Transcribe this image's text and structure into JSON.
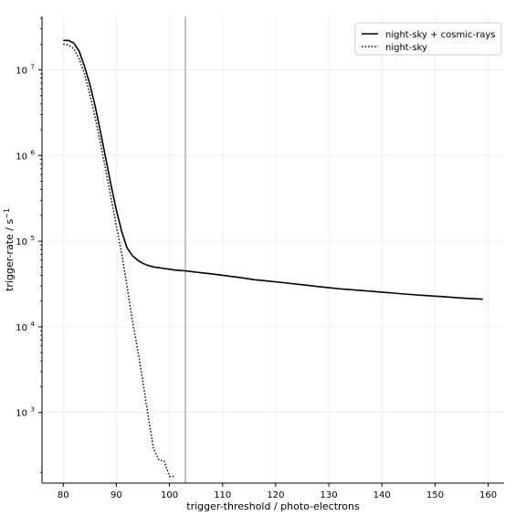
{
  "chart_data": {
    "type": "line",
    "title": "",
    "xlabel": "trigger-threshold / photo-electrons",
    "ylabel": "trigger-rate / s",
    "ylabel_superscript": "−1",
    "xlim": [
      76,
      163
    ],
    "ylim": [
      150,
      42000000
    ],
    "yscale": "log",
    "grid": true,
    "x_ticks": [
      80,
      90,
      100,
      110,
      120,
      130,
      140,
      150,
      160
    ],
    "x_tick_labels": [
      "80",
      "90",
      "100",
      "110",
      "120",
      "130",
      "140",
      "150",
      "160"
    ],
    "y_ticks": [
      1000,
      10000,
      100000,
      1000000,
      10000000
    ],
    "y_tick_labels": [
      {
        "base": "10",
        "exp": "3"
      },
      {
        "base": "10",
        "exp": "4"
      },
      {
        "base": "10",
        "exp": "5"
      },
      {
        "base": "10",
        "exp": "6"
      },
      {
        "base": "10",
        "exp": "7"
      }
    ],
    "vline": {
      "x": 103,
      "color": "#b0b0b0"
    },
    "legend_position": "top-right",
    "series": [
      {
        "name": "night-sky + cosmic-rays",
        "style": "solid",
        "color": "#000000",
        "x": [
          80,
          81,
          82,
          83,
          84,
          85,
          86,
          87,
          88,
          89,
          90,
          91,
          92,
          93,
          94,
          95,
          96,
          97,
          98,
          99,
          100,
          101,
          102,
          103,
          104,
          105,
          106,
          108,
          110,
          112,
          114,
          116,
          118,
          120,
          122,
          124,
          126,
          128,
          130,
          132,
          134,
          136,
          138,
          140,
          142,
          144,
          146,
          148,
          150,
          152,
          154,
          156,
          158,
          159
        ],
        "y": [
          22000000,
          22000000,
          20500000,
          16500000,
          11000000,
          6800000,
          3800000,
          1900000,
          930000,
          450000,
          230000,
          130000,
          84000,
          68000,
          60000,
          55000,
          52000,
          50000,
          49000,
          48000,
          47000,
          46000,
          45500,
          45000,
          44200,
          43500,
          42800,
          41500,
          40000,
          38500,
          37000,
          35500,
          34500,
          33500,
          32500,
          31500,
          30500,
          29500,
          28600,
          27800,
          27200,
          26600,
          26000,
          25400,
          24800,
          24200,
          23700,
          23200,
          22800,
          22400,
          21900,
          21500,
          21200,
          21000
        ]
      },
      {
        "name": "night-sky",
        "style": "dotted",
        "color": "#000000",
        "x": [
          80,
          81,
          82,
          83,
          84,
          85,
          86,
          87,
          88,
          89,
          90,
          91,
          92,
          93,
          94,
          95,
          96,
          97,
          98,
          99,
          100,
          101
        ],
        "y": [
          20000000,
          19500000,
          17500000,
          13500000,
          9000000,
          5200000,
          2800000,
          1400000,
          680000,
          320000,
          150000,
          72000,
          30000,
          12000,
          5500,
          2300,
          900,
          380,
          280,
          270,
          180,
          180
        ]
      }
    ]
  }
}
